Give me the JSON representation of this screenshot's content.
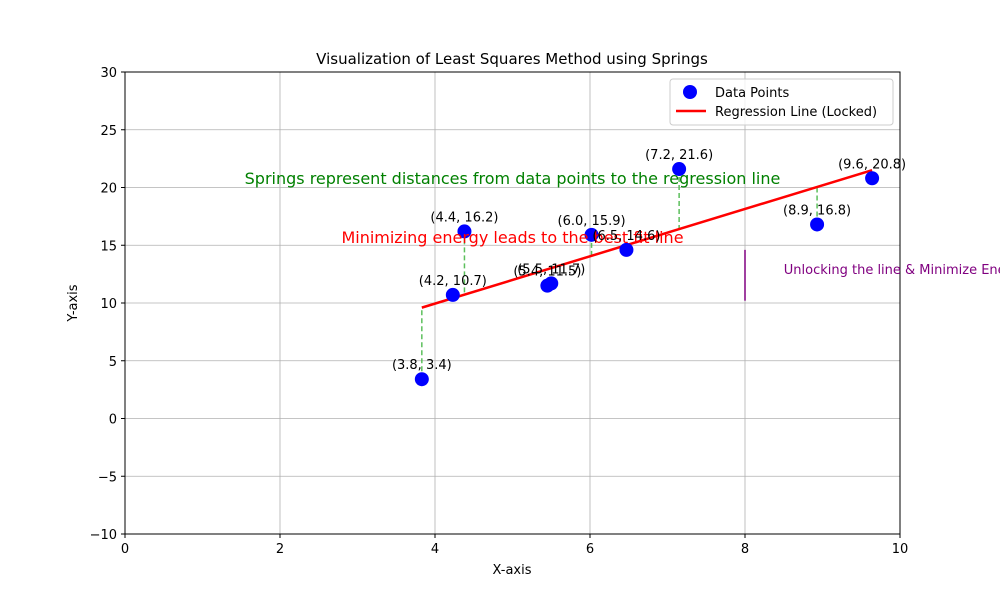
{
  "chart_data": {
    "type": "scatter",
    "title": "Visualization of Least Squares Method using Springs",
    "xlabel": "X-axis",
    "ylabel": "Y-axis",
    "xlim": [
      0,
      10
    ],
    "ylim": [
      -10,
      30
    ],
    "x_ticks": [
      0,
      2,
      4,
      6,
      8,
      10
    ],
    "y_ticks": [
      -10,
      -5,
      0,
      5,
      10,
      15,
      20,
      25,
      30
    ],
    "y_tick_labels": [
      "−10",
      "−5",
      "0",
      "5",
      "10",
      "15",
      "20",
      "25",
      "30"
    ],
    "grid": true,
    "legend_position": "upper-right",
    "series": [
      {
        "name": "Data Points",
        "kind": "scatter",
        "color": "#0000ff",
        "points": [
          {
            "x": 3.83,
            "y": 3.4,
            "label": "(3.8, 3.4)"
          },
          {
            "x": 4.23,
            "y": 10.7,
            "label": "(4.2, 10.7)"
          },
          {
            "x": 4.38,
            "y": 16.2,
            "label": "(4.4, 16.2)"
          },
          {
            "x": 5.45,
            "y": 11.5,
            "label": "(5.4, 11.5)"
          },
          {
            "x": 5.5,
            "y": 11.7,
            "label": "(5.5, 11.7)"
          },
          {
            "x": 6.02,
            "y": 15.9,
            "label": "(6.0, 15.9)"
          },
          {
            "x": 6.47,
            "y": 14.6,
            "label": "(6.5, 14.6)"
          },
          {
            "x": 7.15,
            "y": 21.6,
            "label": "(7.2, 21.6)"
          },
          {
            "x": 8.93,
            "y": 16.8,
            "label": "(8.9, 16.8)"
          },
          {
            "x": 9.64,
            "y": 20.8,
            "label": "(9.6, 20.8)"
          }
        ]
      },
      {
        "name": "Regression Line (Locked)",
        "kind": "line",
        "color": "#ff0000",
        "points": [
          {
            "x": 3.83,
            "y": 9.6
          },
          {
            "x": 9.64,
            "y": 21.5
          }
        ]
      }
    ],
    "springs": [
      {
        "x": 3.83,
        "y1": 3.4,
        "y2": 9.6
      },
      {
        "x": 4.38,
        "y1": 16.2,
        "y2": 10.7
      },
      {
        "x": 6.02,
        "y1": 15.9,
        "y2": 14.1
      },
      {
        "x": 7.15,
        "y1": 21.6,
        "y2": 16.4
      },
      {
        "x": 8.93,
        "y1": 16.8,
        "y2": 20.0
      }
    ],
    "annotations": [
      {
        "text": "Springs represent distances from data points to the regression line",
        "x": 5.0,
        "y": 20.3,
        "color": "#008000",
        "anchor": "middle",
        "size": 16
      },
      {
        "text": "Minimizing energy leads to the best fit line",
        "x": 5.0,
        "y": 15.2,
        "color": "#ff0000",
        "anchor": "middle",
        "size": 16
      },
      {
        "text": "Unlocking the line & Minimize Energy",
        "x": 8.5,
        "y": 12.5,
        "color": "#800080",
        "anchor": "start",
        "size": 13
      }
    ],
    "marker_line": {
      "x": 8.0,
      "y1": 10.2,
      "y2": 14.6,
      "color": "#800080"
    }
  }
}
